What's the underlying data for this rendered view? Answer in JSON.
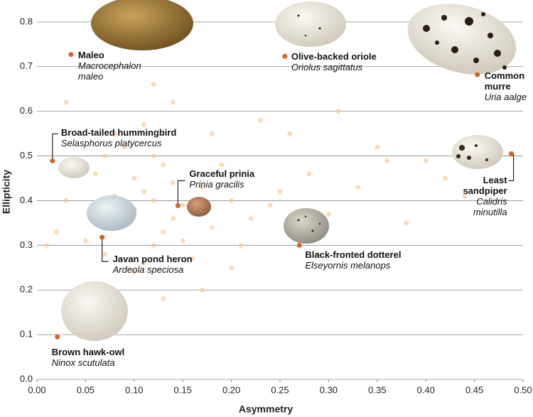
{
  "chart_data": {
    "type": "scatter",
    "x_label": "Asymmetry",
    "y_label": "Ellipticity",
    "xlim": [
      0,
      0.5
    ],
    "ylim": [
      0,
      0.83
    ],
    "xticks": [
      {
        "value": 0,
        "label": "0.00"
      },
      0.05,
      {
        "value": 0.1,
        "label": "0.10"
      },
      0.15,
      {
        "value": 0.2,
        "label": "0.20"
      },
      0.25,
      {
        "value": 0.3,
        "label": "0.30"
      },
      0.35,
      {
        "value": 0.4,
        "label": "0.40"
      },
      0.45,
      {
        "value": 0.5,
        "label": "0.50"
      }
    ],
    "yticks": [
      {
        "value": 0,
        "label": "0.0"
      },
      0.1,
      0.2,
      0.3,
      0.4,
      0.5,
      0.6,
      0.7,
      0.8
    ],
    "grid": true,
    "series": [
      {
        "color": "#f8c58c",
        "x": [
          0.1,
          0.12,
          0.14,
          0.09,
          0.11,
          0.13,
          0.15,
          0.08,
          0.16,
          0.18,
          0.12,
          0.1,
          0.14,
          0.17,
          0.2,
          0.07,
          0.05,
          0.06,
          0.22,
          0.25,
          0.19,
          0.11,
          0.13,
          0.15,
          0.09,
          0.21,
          0.24,
          0.28,
          0.3,
          0.03,
          0.04,
          0.02,
          0.26,
          0.33,
          0.36,
          0.18,
          0.16,
          0.12,
          0.1,
          0.23,
          0.27,
          0.31,
          0.08,
          0.06,
          0.14,
          0.35,
          0.4,
          0.44,
          0.29,
          0.2,
          0.17,
          0.13,
          0.11,
          0.07,
          0.05,
          0.38,
          0.42,
          0.01,
          0.03,
          0.12
        ],
        "y": [
          0.38,
          0.4,
          0.36,
          0.35,
          0.42,
          0.33,
          0.39,
          0.41,
          0.37,
          0.34,
          0.3,
          0.45,
          0.44,
          0.43,
          0.4,
          0.28,
          0.31,
          0.46,
          0.36,
          0.42,
          0.48,
          0.26,
          0.48,
          0.31,
          0.52,
          0.3,
          0.39,
          0.46,
          0.37,
          0.4,
          0.2,
          0.33,
          0.55,
          0.43,
          0.49,
          0.55,
          0.27,
          0.5,
          0.24,
          0.58,
          0.32,
          0.6,
          0.55,
          0.38,
          0.62,
          0.52,
          0.49,
          0.41,
          0.28,
          0.25,
          0.2,
          0.18,
          0.57,
          0.5,
          0.14,
          0.35,
          0.45,
          0.3,
          0.62,
          0.66
        ]
      },
      {
        "color": "#d9622b",
        "x": [
          0.035,
          0.255,
          0.453,
          0.016,
          0.145,
          0.488,
          0.067,
          0.27,
          0.021
        ],
        "y": [
          0.727,
          0.723,
          0.682,
          0.489,
          0.389,
          0.505,
          0.318,
          0.3,
          0.095
        ],
        "names": [
          "Maleo",
          "Olive-backed oriole",
          "Common murre",
          "Broad-tailed hummingbird",
          "Graceful prinia",
          "Least sandpiper",
          "Javan pond heron",
          "Black-fronted dotterel",
          "Brown hawk-owl"
        ],
        "latin": [
          "Macrocephalon maleo",
          "Oriolus sagittatus",
          "Uria aalge",
          "Selasphorus platycercus",
          "Prinia gracilis",
          "Calidris minutilla",
          "Ardeola speciosa",
          "Elseyornis melanops",
          "Ninox scutulata"
        ]
      }
    ]
  }
}
